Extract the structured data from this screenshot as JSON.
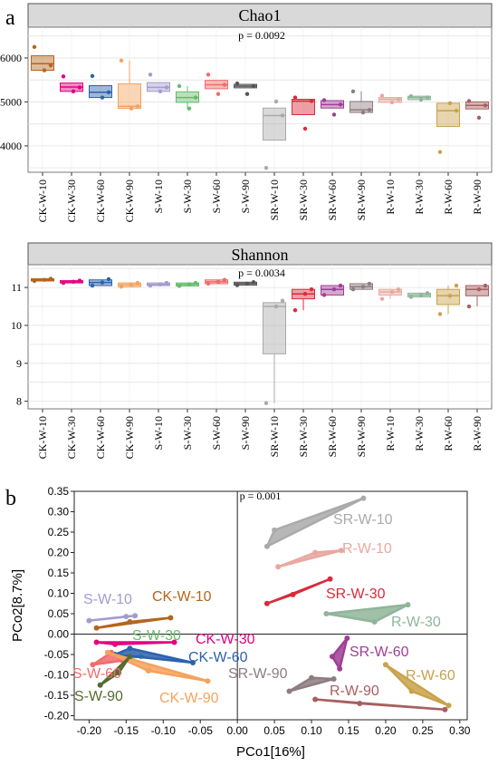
{
  "panel_labels": [
    "a",
    "b"
  ],
  "chart_data": [
    {
      "type": "box",
      "title": "Chao1",
      "annotation": "p = 0.0092",
      "categories": [
        "CK-W-10",
        "CK-W-30",
        "CK-W-60",
        "CK-W-90",
        "S-W-10",
        "S-W-30",
        "S-W-60",
        "S-W-90",
        "SR-W-10",
        "SR-W-30",
        "SR-W-60",
        "SR-W-90",
        "R-W-10",
        "R-W-30",
        "R-W-60",
        "R-W-90"
      ],
      "colors": [
        "#b5651d",
        "#e4007f",
        "#2b62ad",
        "#f5a25d",
        "#a49bd1",
        "#66bb6a",
        "#f26b6b",
        "#555555",
        "#aaaaaa",
        "#d92b3a",
        "#a03e96",
        "#8e7d80",
        "#e8a8a0",
        "#8fb59a",
        "#c9a24a",
        "#a85f5f"
      ],
      "ylim": [
        3400,
        6700
      ],
      "yticks": [
        4000,
        5000,
        6000
      ],
      "boxes": [
        {
          "q1": 5720,
          "median": 5870,
          "q3": 6050,
          "lo": 5720,
          "hi": 6050
        },
        {
          "q1": 5240,
          "median": 5340,
          "q3": 5430,
          "lo": 5240,
          "hi": 5430
        },
        {
          "q1": 5100,
          "median": 5220,
          "q3": 5370,
          "lo": 5100,
          "hi": 5370
        },
        {
          "q1": 4850,
          "median": 4900,
          "q3": 5410,
          "lo": 4850,
          "hi": 5940
        },
        {
          "q1": 5240,
          "median": 5330,
          "q3": 5440,
          "lo": 5240,
          "hi": 5440
        },
        {
          "q1": 4990,
          "median": 5100,
          "q3": 5230,
          "lo": 4850,
          "hi": 5360
        },
        {
          "q1": 5300,
          "median": 5390,
          "q3": 5490,
          "lo": 5300,
          "hi": 5490
        },
        {
          "q1": 5320,
          "median": 5360,
          "q3": 5400,
          "lo": 5320,
          "hi": 5400
        },
        {
          "q1": 4130,
          "median": 4690,
          "q3": 4860,
          "lo": 4130,
          "hi": 4860
        },
        {
          "q1": 4710,
          "median": 5020,
          "q3": 5060,
          "lo": 4710,
          "hi": 5060
        },
        {
          "q1": 4860,
          "median": 4940,
          "q3": 5030,
          "lo": 4860,
          "hi": 5030
        },
        {
          "q1": 4760,
          "median": 4820,
          "q3": 5010,
          "lo": 4760,
          "hi": 5240
        },
        {
          "q1": 4990,
          "median": 5060,
          "q3": 5100,
          "lo": 4990,
          "hi": 5100
        },
        {
          "q1": 5050,
          "median": 5100,
          "q3": 5130,
          "lo": 5050,
          "hi": 5130
        },
        {
          "q1": 4440,
          "median": 4800,
          "q3": 4970,
          "lo": 4440,
          "hi": 4970
        },
        {
          "q1": 4840,
          "median": 4920,
          "q3": 5000,
          "lo": 4840,
          "hi": 5000
        }
      ],
      "points": [
        [
          6250,
          5720,
          5830
        ],
        [
          5580,
          5240,
          5330
        ],
        [
          5590,
          5100,
          5220
        ],
        [
          5940,
          4850,
          4900
        ],
        [
          5620,
          5240,
          5330
        ],
        [
          5360,
          4850,
          5100
        ],
        [
          5620,
          5180,
          5390
        ],
        [
          5420,
          5180,
          5360
        ],
        [
          3500,
          5010,
          4690
        ],
        [
          5100,
          4390,
          5020
        ],
        [
          5040,
          4710,
          4940
        ],
        [
          5240,
          4760,
          4820
        ],
        [
          5140,
          4990,
          5060
        ],
        [
          5130,
          5050,
          5100
        ],
        [
          3860,
          4970,
          4800
        ],
        [
          5020,
          4640,
          4920
        ]
      ]
    },
    {
      "type": "box",
      "title": "Shannon",
      "annotation": "p = 0.0034",
      "categories": [
        "CK-W-10",
        "CK-W-30",
        "CK-W-60",
        "CK-W-90",
        "S-W-10",
        "S-W-30",
        "S-W-60",
        "S-W-90",
        "SR-W-10",
        "SR-W-30",
        "SR-W-60",
        "SR-W-90",
        "R-W-10",
        "R-W-30",
        "R-W-60",
        "R-W-90"
      ],
      "colors": [
        "#b5651d",
        "#e4007f",
        "#2b62ad",
        "#f5a25d",
        "#a49bd1",
        "#66bb6a",
        "#f26b6b",
        "#555555",
        "#aaaaaa",
        "#d92b3a",
        "#a03e96",
        "#8e7d80",
        "#e8a8a0",
        "#8fb59a",
        "#c9a24a",
        "#a85f5f"
      ],
      "ylim": [
        7.8,
        11.6
      ],
      "yticks": [
        8,
        9,
        10,
        11
      ],
      "boxes": [
        {
          "q1": 11.17,
          "median": 11.2,
          "q3": 11.23,
          "lo": 11.17,
          "hi": 11.23
        },
        {
          "q1": 11.12,
          "median": 11.15,
          "q3": 11.18,
          "lo": 11.12,
          "hi": 11.18
        },
        {
          "q1": 11.05,
          "median": 11.13,
          "q3": 11.2,
          "lo": 11.05,
          "hi": 11.2
        },
        {
          "q1": 11.02,
          "median": 11.07,
          "q3": 11.12,
          "lo": 11.02,
          "hi": 11.12
        },
        {
          "q1": 11.05,
          "median": 11.08,
          "q3": 11.12,
          "lo": 11.05,
          "hi": 11.12
        },
        {
          "q1": 11.04,
          "median": 11.08,
          "q3": 11.12,
          "lo": 11.04,
          "hi": 11.12
        },
        {
          "q1": 11.1,
          "median": 11.15,
          "q3": 11.2,
          "lo": 11.1,
          "hi": 11.2
        },
        {
          "q1": 11.06,
          "median": 11.1,
          "q3": 11.14,
          "lo": 11.06,
          "hi": 11.14
        },
        {
          "q1": 9.25,
          "median": 10.5,
          "q3": 10.6,
          "lo": 7.95,
          "hi": 10.6
        },
        {
          "q1": 10.7,
          "median": 10.83,
          "q3": 10.95,
          "lo": 10.4,
          "hi": 10.95
        },
        {
          "q1": 10.8,
          "median": 10.95,
          "q3": 11.05,
          "lo": 10.8,
          "hi": 11.05
        },
        {
          "q1": 10.95,
          "median": 11.02,
          "q3": 11.1,
          "lo": 10.95,
          "hi": 11.1
        },
        {
          "q1": 10.8,
          "median": 10.88,
          "q3": 10.95,
          "lo": 10.7,
          "hi": 10.95
        },
        {
          "q1": 10.75,
          "median": 10.8,
          "q3": 10.85,
          "lo": 10.75,
          "hi": 10.85
        },
        {
          "q1": 10.55,
          "median": 10.78,
          "q3": 10.95,
          "lo": 10.3,
          "hi": 11.05
        },
        {
          "q1": 10.78,
          "median": 10.95,
          "q3": 11.05,
          "lo": 10.5,
          "hi": 11.05
        }
      ],
      "points": [
        [
          11.17,
          11.2,
          11.23
        ],
        [
          11.12,
          11.15,
          11.18
        ],
        [
          11.05,
          11.13,
          11.22
        ],
        [
          11.02,
          11.07,
          11.12
        ],
        [
          11.05,
          11.08,
          11.12
        ],
        [
          11.04,
          11.08,
          11.12
        ],
        [
          11.1,
          11.15,
          11.2
        ],
        [
          11.06,
          11.1,
          11.14
        ],
        [
          7.95,
          10.5,
          10.65
        ],
        [
          10.4,
          10.83,
          10.95
        ],
        [
          10.8,
          10.95,
          11.05
        ],
        [
          10.95,
          11.02,
          11.1
        ],
        [
          10.7,
          10.88,
          10.95
        ],
        [
          10.75,
          10.8,
          10.85
        ],
        [
          10.3,
          10.78,
          11.05
        ],
        [
          10.5,
          10.95,
          11.05
        ]
      ]
    },
    {
      "type": "scatter",
      "annotation": "p = 0.001",
      "xlabel": "PCo1[16%]",
      "ylabel": "PCo2[8.7%]",
      "xlim": [
        -0.22,
        0.31
      ],
      "ylim": [
        -0.21,
        0.35
      ],
      "xticks": [
        -0.2,
        -0.15,
        -0.1,
        -0.05,
        0.0,
        0.05,
        0.1,
        0.15,
        0.2,
        0.25,
        0.3
      ],
      "xtick_labels": [
        "-0.20",
        "-0.15",
        "-0.10",
        "-0.05",
        "0.00",
        "0.05",
        "0.10",
        "0.15",
        "0.20",
        "0.25",
        "0.30"
      ],
      "yticks": [
        -0.2,
        -0.15,
        -0.1,
        -0.05,
        0.0,
        0.05,
        0.1,
        0.15,
        0.2,
        0.25,
        0.3,
        0.35
      ],
      "ytick_labels": [
        "-0.20",
        "-0.15",
        "-0.10",
        "-0.05",
        "0.00",
        "0.05",
        "0.10",
        "0.15",
        "0.20",
        "0.25",
        "0.30",
        "0.35"
      ],
      "groups": [
        {
          "name": "SR-W-10",
          "color": "#aaaaaa",
          "points": [
            [
              0.05,
              0.255
            ],
            [
              0.04,
              0.215
            ],
            [
              0.17,
              0.333
            ]
          ]
        },
        {
          "name": "R-W-10",
          "color": "#e8a8a0",
          "points": [
            [
              0.055,
              0.165
            ],
            [
              0.14,
              0.205
            ],
            [
              0.105,
              0.2
            ]
          ]
        },
        {
          "name": "SR-W-30",
          "color": "#d92b3a",
          "points": [
            [
              0.04,
              0.075
            ],
            [
              0.075,
              0.097
            ],
            [
              0.125,
              0.135
            ]
          ]
        },
        {
          "name": "R-W-30",
          "color": "#8fb59a",
          "points": [
            [
              0.12,
              0.05
            ],
            [
              0.23,
              0.072
            ],
            [
              0.185,
              0.03
            ]
          ]
        },
        {
          "name": "SR-W-60",
          "color": "#a03e96",
          "points": [
            [
              0.128,
              -0.055
            ],
            [
              0.148,
              -0.01
            ],
            [
              0.138,
              -0.085
            ]
          ]
        },
        {
          "name": "R-W-60",
          "color": "#c9a24a",
          "points": [
            [
              0.2,
              -0.075
            ],
            [
              0.285,
              -0.175
            ],
            [
              0.235,
              -0.14
            ]
          ]
        },
        {
          "name": "SR-W-90",
          "color": "#8e7d80",
          "points": [
            [
              0.07,
              -0.14
            ],
            [
              0.1,
              -0.107
            ],
            [
              0.13,
              -0.11
            ]
          ]
        },
        {
          "name": "R-W-90",
          "color": "#a85f5f",
          "points": [
            [
              0.105,
              -0.16
            ],
            [
              0.28,
              -0.185
            ],
            [
              0.165,
              -0.17
            ]
          ]
        },
        {
          "name": "S-W-10",
          "color": "#a49bd1",
          "points": [
            [
              -0.2,
              0.033
            ],
            [
              -0.15,
              0.043
            ],
            [
              -0.138,
              0.045
            ]
          ]
        },
        {
          "name": "CK-W-10",
          "color": "#b5651d",
          "points": [
            [
              -0.19,
              0.015
            ],
            [
              -0.09,
              0.04
            ],
            [
              -0.145,
              0.03
            ]
          ]
        },
        {
          "name": "S-W-30",
          "color": "#66bb6a",
          "points": [
            [
              -0.16,
              -0.055
            ],
            [
              -0.155,
              -0.06
            ],
            [
              -0.13,
              -0.055
            ]
          ]
        },
        {
          "name": "CK-W-30",
          "color": "#e4007f",
          "points": [
            [
              -0.19,
              -0.02
            ],
            [
              -0.085,
              -0.02
            ],
            [
              -0.165,
              -0.025
            ]
          ]
        },
        {
          "name": "CK-W-60",
          "color": "#2b62ad",
          "points": [
            [
              -0.165,
              -0.05
            ],
            [
              -0.06,
              -0.07
            ],
            [
              -0.145,
              -0.035
            ]
          ]
        },
        {
          "name": "S-W-60",
          "color": "#f26b6b",
          "points": [
            [
              -0.195,
              -0.075
            ],
            [
              -0.17,
              -0.045
            ],
            [
              -0.155,
              -0.065
            ]
          ]
        },
        {
          "name": "CK-W-90",
          "color": "#f5a25d",
          "points": [
            [
              -0.175,
              -0.045
            ],
            [
              -0.04,
              -0.115
            ],
            [
              -0.12,
              -0.09
            ]
          ]
        },
        {
          "name": "S-W-90",
          "color": "#556b2f",
          "points": [
            [
              -0.185,
              -0.125
            ],
            [
              -0.145,
              -0.055
            ],
            [
              -0.16,
              -0.095
            ]
          ]
        }
      ]
    }
  ]
}
